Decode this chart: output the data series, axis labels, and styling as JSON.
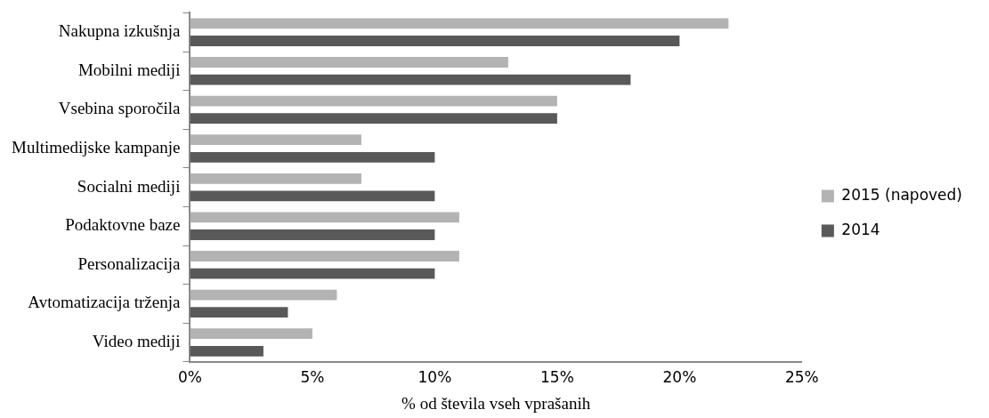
{
  "chart_data": {
    "type": "bar",
    "orientation": "horizontal",
    "xlabel": "% od števila vseh vprašanih",
    "categories": [
      "Nakupna izkušnja",
      "Mobilni mediji",
      "Vsebina sporočila",
      "Multimedijske kampanje",
      "Socialni mediji",
      "Podaktovne baze",
      "Personalizacija",
      "Avtomatizacija trženja",
      "Video mediji"
    ],
    "series": [
      {
        "name": "2015 (napoved)",
        "color": "#b3b3b3",
        "values": [
          22,
          13,
          15,
          7,
          7,
          11,
          11,
          6,
          5
        ]
      },
      {
        "name": "2014",
        "color": "#595959",
        "values": [
          20,
          18,
          15,
          10,
          10,
          10,
          10,
          4,
          3
        ]
      }
    ],
    "xlim": [
      0,
      25
    ],
    "xticks": [
      {
        "value": 0,
        "label": "0%"
      },
      {
        "value": 5,
        "label": "5%"
      },
      {
        "value": 10,
        "label": "10%"
      },
      {
        "value": 15,
        "label": "15%"
      },
      {
        "value": 20,
        "label": "20%"
      },
      {
        "value": 25,
        "label": "25%"
      }
    ],
    "grid": false,
    "legend": "right"
  }
}
